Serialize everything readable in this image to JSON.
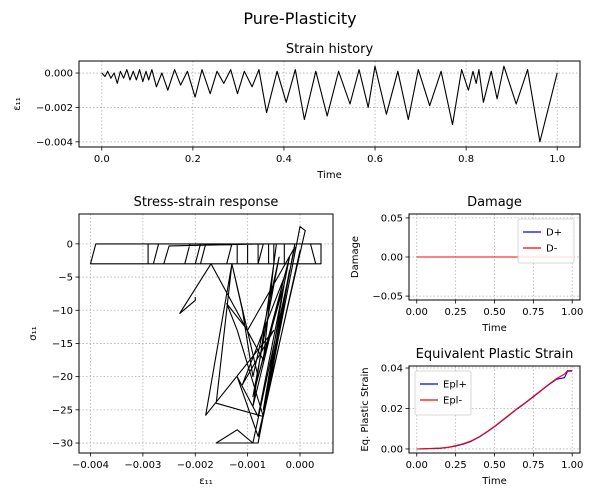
{
  "figure": {
    "suptitle": "Pure-Plasticity"
  },
  "chart_data": [
    {
      "id": "strain",
      "type": "line",
      "title": "Strain history",
      "xlabel": "Time",
      "ylabel": "ε₁₁",
      "xlim": [
        -0.05,
        1.05
      ],
      "ylim": [
        -0.0043,
        0.0007
      ],
      "xticks": [
        0.0,
        0.2,
        0.4,
        0.6,
        0.8,
        1.0
      ],
      "xtick_labels": [
        "0.0",
        "0.2",
        "0.4",
        "0.6",
        "0.8",
        "1.0"
      ],
      "yticks": [
        0.0,
        -0.002,
        -0.004
      ],
      "ytick_labels": [
        "0.000",
        "−0.002",
        "−0.004"
      ],
      "grid": true,
      "series": [
        {
          "color": "#000000",
          "points": [
            [
              0.0,
              0.0
            ],
            [
              0.007,
              -0.0002
            ],
            [
              0.013,
              0.0001
            ],
            [
              0.02,
              -0.0003
            ],
            [
              0.027,
              0.0
            ],
            [
              0.034,
              -0.0006
            ],
            [
              0.041,
              0.0001
            ],
            [
              0.048,
              -0.0003
            ],
            [
              0.055,
              0.0002
            ],
            [
              0.062,
              -0.0004
            ],
            [
              0.069,
              0.0001
            ],
            [
              0.076,
              -0.0004
            ],
            [
              0.083,
              0.0002
            ],
            [
              0.09,
              -0.0005
            ],
            [
              0.097,
              0.0001
            ],
            [
              0.103,
              -0.0004
            ],
            [
              0.11,
              0.0002
            ],
            [
              0.12,
              -0.0008
            ],
            [
              0.132,
              0.0
            ],
            [
              0.145,
              -0.001
            ],
            [
              0.16,
              0.0002
            ],
            [
              0.173,
              -0.0007
            ],
            [
              0.188,
              0.0001
            ],
            [
              0.205,
              -0.0014
            ],
            [
              0.22,
              0.0002
            ],
            [
              0.238,
              -0.0012
            ],
            [
              0.253,
              0.0001
            ],
            [
              0.268,
              -0.0006
            ],
            [
              0.283,
              0.0002
            ],
            [
              0.298,
              -0.0012
            ],
            [
              0.313,
              0.0001
            ],
            [
              0.33,
              -0.0008
            ],
            [
              0.345,
              0.0002
            ],
            [
              0.362,
              -0.0023
            ],
            [
              0.385,
              0.0001
            ],
            [
              0.405,
              -0.0017
            ],
            [
              0.425,
              0.0002
            ],
            [
              0.445,
              -0.0027
            ],
            [
              0.47,
              0.0001
            ],
            [
              0.495,
              -0.0025
            ],
            [
              0.52,
              0.0001
            ],
            [
              0.545,
              -0.0018
            ],
            [
              0.565,
              0.0002
            ],
            [
              0.585,
              -0.002
            ],
            [
              0.6,
              0.0004
            ],
            [
              0.625,
              -0.0024
            ],
            [
              0.65,
              0.0001
            ],
            [
              0.673,
              -0.0027
            ],
            [
              0.695,
              0.0002
            ],
            [
              0.72,
              -0.0019
            ],
            [
              0.745,
              0.0001
            ],
            [
              0.77,
              -0.003
            ],
            [
              0.79,
              0.0002
            ],
            [
              0.805,
              -0.001
            ],
            [
              0.815,
              0.0001
            ],
            [
              0.822,
              -0.0006
            ],
            [
              0.828,
              0.0002
            ],
            [
              0.838,
              -0.0017
            ],
            [
              0.855,
              0.0001
            ],
            [
              0.868,
              -0.0015
            ],
            [
              0.883,
              0.0004
            ],
            [
              0.91,
              -0.0018
            ],
            [
              0.935,
              0.0002
            ],
            [
              0.962,
              -0.004
            ],
            [
              1.0,
              0.0
            ]
          ]
        }
      ]
    },
    {
      "id": "stress",
      "type": "line",
      "title": "Stress-strain response",
      "xlabel": "ε₁₁",
      "ylabel": "σ₁₁",
      "xlim": [
        -0.00422,
        0.00063
      ],
      "ylim": [
        -31.5,
        4.5
      ],
      "xticks": [
        -0.004,
        -0.003,
        -0.002,
        -0.001,
        0.0
      ],
      "xtick_labels": [
        "−0.004",
        "−0.003",
        "−0.002",
        "−0.001",
        "0.000"
      ],
      "yticks": [
        0,
        -5,
        -10,
        -15,
        -20,
        -25,
        -30
      ],
      "ytick_labels": [
        "0",
        "−5",
        "−10",
        "−15",
        "−20",
        "−25",
        "−30"
      ],
      "grid": true,
      "series": [
        {
          "color": "#000000",
          "points": [
            [
              0.0002,
              0
            ],
            [
              0.0003,
              -3
            ],
            [
              -0.004,
              -3
            ],
            [
              -0.0039,
              0
            ],
            [
              0.0004,
              0
            ],
            [
              0.0004,
              -3
            ],
            [
              -0.0029,
              -3
            ],
            [
              -0.0029,
              0
            ],
            [
              -0.0003,
              0
            ],
            [
              -0.0003,
              -3
            ],
            [
              -0.0028,
              -3
            ],
            [
              -0.0027,
              0
            ],
            [
              -0.00045,
              0
            ],
            [
              -0.0005,
              -3
            ],
            [
              -0.0026,
              -3
            ],
            [
              -0.0025,
              -0.3
            ],
            [
              -0.0007,
              0
            ],
            [
              -0.0008,
              -3
            ],
            [
              -0.0022,
              -3
            ],
            [
              -0.0021,
              0
            ],
            [
              -0.0005,
              0
            ],
            [
              -0.0005,
              -3
            ],
            [
              -0.002,
              -3
            ],
            [
              -0.0019,
              0
            ],
            [
              -0.0006,
              0
            ],
            [
              -0.0006,
              -3
            ],
            [
              -0.0019,
              -3
            ],
            [
              -0.0018,
              0
            ],
            [
              -0.0008,
              0
            ],
            [
              -0.0008,
              -3
            ],
            [
              -0.0014,
              -3
            ],
            [
              -0.0013,
              0
            ],
            [
              -0.001,
              0
            ],
            [
              -0.001,
              -3
            ],
            [
              -0.0012,
              -3
            ],
            [
              -0.0012,
              0
            ],
            [
              0.0002,
              0
            ],
            [
              0.0003,
              -3
            ],
            [
              -0.004,
              -3
            ]
          ]
        },
        {
          "color": "#000000",
          "points": [
            [
              -0.0023,
              -10.5
            ],
            [
              -0.0017,
              -3
            ],
            [
              -0.0007,
              -17.5
            ],
            [
              -0.0005,
              -3
            ],
            [
              -0.0009,
              -24.5
            ],
            [
              -0.0003,
              -5
            ],
            [
              -0.0011,
              -21.2
            ],
            [
              -0.0005,
              -13
            ],
            [
              -0.0018,
              -25.8
            ],
            [
              -0.0013,
              -3
            ],
            [
              -0.0008,
              -20
            ],
            [
              -0.0003,
              -6
            ],
            [
              -0.0007,
              -25
            ],
            [
              -0.0002,
              -4
            ],
            [
              -0.0008,
              -30
            ],
            [
              0.0,
              2.6
            ],
            [
              0.0001,
              2
            ],
            [
              -0.0008,
              -29
            ],
            [
              -0.0012,
              -20
            ],
            [
              -0.0008,
              -26
            ],
            [
              -0.0002,
              -2
            ],
            [
              -0.0009,
              -23
            ],
            [
              -0.0004,
              -2
            ],
            [
              -0.0009,
              -20
            ],
            [
              -0.0011,
              -10
            ],
            [
              -0.0013,
              -3
            ],
            [
              -0.0016,
              -24
            ],
            [
              -0.0007,
              -26
            ],
            [
              -0.0001,
              0
            ],
            [
              -0.0008,
              -30
            ],
            [
              -0.0016,
              -30
            ],
            [
              -0.0012,
              -28
            ],
            [
              -0.0009,
              -30
            ],
            [
              -0.0001,
              -0.5
            ],
            [
              -0.001,
              -13
            ],
            [
              -0.0014,
              -9
            ],
            [
              -0.0012,
              -13
            ],
            [
              -0.0007,
              -26
            ],
            [
              0.0,
              -1
            ]
          ]
        },
        {
          "color": "#000000",
          "points": [
            [
              -0.002,
              -8
            ],
            [
              -0.002,
              -8.5
            ],
            [
              -0.0023,
              -10.5
            ]
          ]
        }
      ]
    },
    {
      "id": "damage",
      "type": "line",
      "title": "Damage",
      "xlabel": "Time",
      "ylabel": "Damage",
      "xlim": [
        -0.05,
        1.05
      ],
      "ylim": [
        -0.055,
        0.055
      ],
      "xticks": [
        0.0,
        0.25,
        0.5,
        0.75,
        1.0
      ],
      "xtick_labels": [
        "0.00",
        "0.25",
        "0.50",
        "0.75",
        "1.00"
      ],
      "yticks": [
        0.05,
        0.0,
        -0.05
      ],
      "ytick_labels": [
        "0.05",
        "0.00",
        "−0.05"
      ],
      "grid": true,
      "legend": "upper-right",
      "series": [
        {
          "name": "D+",
          "color": "#0000ff",
          "points": [
            [
              0,
              0
            ],
            [
              1,
              0
            ]
          ]
        },
        {
          "name": "D-",
          "color": "#ff0000",
          "points": [
            [
              0,
              0
            ],
            [
              1,
              0
            ]
          ]
        }
      ]
    },
    {
      "id": "eps_plastic",
      "type": "line",
      "title": "Equivalent Plastic Strain",
      "xlabel": "Time",
      "ylabel": "Eq. Plastic Strain",
      "xlim": [
        -0.05,
        1.05
      ],
      "ylim": [
        -0.002,
        0.041
      ],
      "xticks": [
        0.0,
        0.25,
        0.5,
        0.75,
        1.0
      ],
      "xtick_labels": [
        "0.00",
        "0.25",
        "0.50",
        "0.75",
        "1.00"
      ],
      "yticks": [
        0.04,
        0.02,
        0.0
      ],
      "ytick_labels": [
        "0.04",
        "0.02",
        "0.00"
      ],
      "grid": true,
      "legend": "upper-left",
      "series": [
        {
          "name": "Epl+",
          "color": "#0000ff",
          "points": [
            [
              0,
              0
            ],
            [
              0.15,
              0.0003
            ],
            [
              0.2,
              0.0007
            ],
            [
              0.25,
              0.0014
            ],
            [
              0.3,
              0.0024
            ],
            [
              0.35,
              0.0038
            ],
            [
              0.4,
              0.0058
            ],
            [
              0.45,
              0.0083
            ],
            [
              0.5,
              0.011
            ],
            [
              0.55,
              0.014
            ],
            [
              0.6,
              0.017
            ],
            [
              0.65,
              0.02
            ],
            [
              0.7,
              0.0228
            ],
            [
              0.75,
              0.0258
            ],
            [
              0.8,
              0.0288
            ],
            [
              0.85,
              0.0318
            ],
            [
              0.9,
              0.0345
            ],
            [
              0.95,
              0.0352
            ],
            [
              0.97,
              0.0385
            ],
            [
              1.0,
              0.0385
            ]
          ]
        },
        {
          "name": "Epl-",
          "color": "#ff0000",
          "points": [
            [
              0,
              0
            ],
            [
              0.15,
              0.0004
            ],
            [
              0.2,
              0.0008
            ],
            [
              0.25,
              0.0016
            ],
            [
              0.3,
              0.0026
            ],
            [
              0.35,
              0.004
            ],
            [
              0.4,
              0.006
            ],
            [
              0.45,
              0.0085
            ],
            [
              0.5,
              0.0112
            ],
            [
              0.55,
              0.0142
            ],
            [
              0.6,
              0.0172
            ],
            [
              0.65,
              0.0202
            ],
            [
              0.7,
              0.023
            ],
            [
              0.75,
              0.026
            ],
            [
              0.8,
              0.029
            ],
            [
              0.85,
              0.032
            ],
            [
              0.9,
              0.0348
            ],
            [
              0.95,
              0.037
            ],
            [
              0.97,
              0.0388
            ],
            [
              1.0,
              0.0388
            ]
          ]
        }
      ]
    }
  ]
}
